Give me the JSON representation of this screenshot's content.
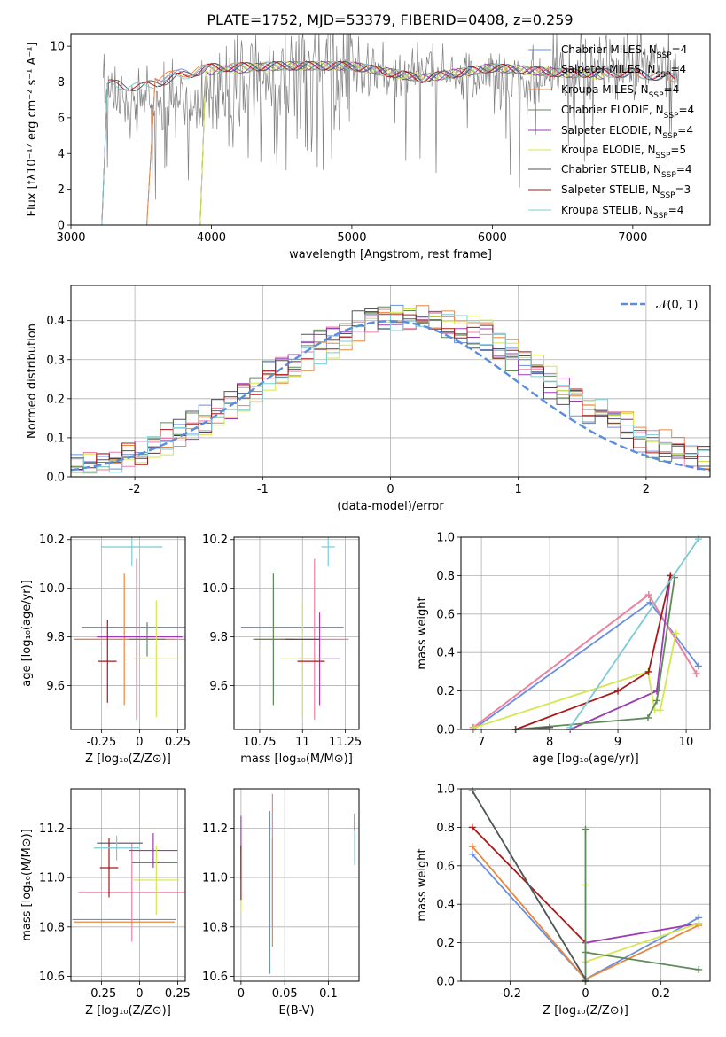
{
  "figure": {
    "title": "PLATE=1752, MJD=53379, FIBERID=0408, z=0.259"
  },
  "colors": {
    "Chabrier MILES": "#6a8fe0",
    "Salpeter MILES": "#ee7fa8",
    "Kroupa MILES": "#e8883e",
    "Chabrier ELODIE": "#5f8a5a",
    "Salpeter ELODIE": "#9b3cb4",
    "Kroupa ELODIE": "#d4e64e",
    "Chabrier STELIB": "#555555",
    "Salpeter STELIB": "#a81818",
    "Kroupa STELIB": "#7ccbd6",
    "data": "#808080",
    "normal": "#5b8dde"
  },
  "chart_data": [
    {
      "panel": "spectrum",
      "type": "line",
      "xlabel": "wavelength [Angstrom, rest frame]",
      "ylabel": "Flux [fλ10⁻¹⁷ erg cm⁻² s⁻¹ A⁻¹]",
      "xlim": [
        3000,
        7550
      ],
      "ylim": [
        0,
        10.7
      ],
      "xticks": [
        3000,
        4000,
        5000,
        6000,
        7000
      ],
      "yticks": [
        0,
        2,
        4,
        6,
        8,
        10
      ],
      "grid": false,
      "legend": "top-right",
      "series": [
        {
          "name": "Chabrier MILES, NSSP=4",
          "x": [
            3540,
            3600,
            4000,
            4500,
            5000,
            5500,
            6000,
            6500,
            7000,
            7300
          ],
          "y": [
            0,
            8.2,
            8.8,
            8.9,
            8.9,
            8.2,
            8.8,
            8.5,
            8.5,
            8.2
          ]
        },
        {
          "name": "Salpeter MILES, NSSP=4",
          "x": [
            3540,
            3600,
            4000,
            4500,
            5000,
            5500,
            6000,
            6500,
            7000,
            7300
          ],
          "y": [
            0,
            8.2,
            8.8,
            8.9,
            8.9,
            8.2,
            8.8,
            8.5,
            8.5,
            8.2
          ]
        },
        {
          "name": "Kroupa MILES, NSSP=4",
          "x": [
            3540,
            3600,
            4000,
            4500,
            5000,
            5500,
            6000,
            6500,
            7000,
            7300
          ],
          "y": [
            0,
            8.2,
            8.8,
            8.9,
            8.9,
            8.2,
            8.8,
            8.5,
            8.5,
            8.2
          ]
        },
        {
          "name": "Chabrier ELODIE, NSSP=4",
          "x": [
            3920,
            3960,
            4500,
            5000,
            5500,
            6000,
            6500,
            6790
          ],
          "y": [
            0,
            8.6,
            8.9,
            8.9,
            8.2,
            8.8,
            8.5,
            8.4
          ]
        },
        {
          "name": "Salpeter ELODIE, NSSP=4",
          "x": [
            3920,
            3960,
            4500,
            5000,
            5500,
            6000,
            6500,
            6790
          ],
          "y": [
            0,
            8.6,
            8.9,
            8.9,
            8.2,
            8.8,
            8.5,
            8.4
          ]
        },
        {
          "name": "Kroupa ELODIE, NSSP=5",
          "x": [
            3920,
            3960,
            4500,
            5000,
            5500,
            6000,
            6500,
            6790
          ],
          "y": [
            0,
            8.6,
            8.9,
            8.9,
            8.2,
            8.8,
            8.5,
            8.4
          ]
        },
        {
          "name": "Chabrier STELIB, NSSP=4",
          "x": [
            3220,
            3260,
            3500,
            4000,
            4500,
            5000,
            5500,
            6000,
            6500,
            7000,
            7300
          ],
          "y": [
            0,
            7.9,
            7.7,
            8.8,
            8.9,
            8.9,
            8.2,
            8.8,
            8.5,
            8.5,
            8.2
          ]
        },
        {
          "name": "Salpeter STELIB, NSSP=3",
          "x": [
            3220,
            3260,
            3500,
            4000,
            4500,
            5000,
            5500,
            6000,
            6500,
            7000,
            7300
          ],
          "y": [
            0,
            7.9,
            7.7,
            8.8,
            8.9,
            8.9,
            8.2,
            8.8,
            8.5,
            8.5,
            8.2
          ]
        },
        {
          "name": "Kroupa STELIB, NSSP=4",
          "x": [
            3220,
            3260,
            3500,
            4000,
            4500,
            5000,
            5500,
            6000,
            6500,
            7000,
            7300
          ],
          "y": [
            0,
            7.9,
            7.7,
            8.8,
            8.9,
            8.9,
            8.2,
            8.8,
            8.5,
            8.5,
            8.2
          ]
        }
      ]
    },
    {
      "panel": "residuals",
      "type": "line",
      "xlabel": "(data-model)/error",
      "ylabel": "Normed distribution",
      "xlim": [
        -2.5,
        2.5
      ],
      "ylim": [
        0,
        0.49
      ],
      "xticks": [
        -2,
        -1,
        0,
        1,
        2
      ],
      "yticks": [
        0.0,
        0.1,
        0.2,
        0.3,
        0.4
      ],
      "grid": true,
      "legend": "top-right",
      "normal_label": "𝒩(0, 1)",
      "bin_width": 0.1
    },
    {
      "panel": "age_vs_Z",
      "type": "scatter",
      "xlabel": "Z [log₁₀(Z/Z⊙)]",
      "ylabel": "age  [log₁₀(age/yr)]",
      "xlim": [
        -0.45,
        0.3
      ],
      "ylim": [
        9.42,
        10.21
      ],
      "xticks": [
        -0.25,
        0.0,
        0.25
      ],
      "yticks": [
        9.6,
        9.8,
        10.0,
        10.2
      ],
      "grid": true,
      "points": [
        {
          "model": "Chabrier MILES",
          "x": 0.0,
          "y": 9.84,
          "xerr": 0.38,
          "yerr": 0.0
        },
        {
          "model": "Salpeter MILES",
          "x": -0.02,
          "y": 9.79,
          "xerr": 0.4,
          "yerr": 0.33
        },
        {
          "model": "Kroupa MILES",
          "x": -0.1,
          "y": 9.79,
          "xerr": 0.33,
          "yerr": 0.27
        },
        {
          "model": "Chabrier ELODIE",
          "x": 0.05,
          "y": 9.79,
          "xerr": 0.12,
          "yerr": 0.07
        },
        {
          "model": "Salpeter ELODIE",
          "x": 0.0,
          "y": 9.8,
          "xerr": 0.28,
          "yerr": 0.0
        },
        {
          "model": "Kroupa ELODIE",
          "x": 0.11,
          "y": 9.71,
          "xerr": 0.15,
          "yerr": 0.24
        },
        {
          "model": "Chabrier STELIB",
          "x": -0.28,
          "y": 9.79,
          "xerr": 0.0,
          "yerr": 0.0
        },
        {
          "model": "Salpeter STELIB",
          "x": -0.21,
          "y": 9.7,
          "xerr": 0.06,
          "yerr": 0.17
        },
        {
          "model": "Kroupa STELIB",
          "x": -0.05,
          "y": 10.17,
          "xerr": 0.2,
          "yerr": 0.08
        }
      ]
    },
    {
      "panel": "age_vs_mass",
      "type": "scatter",
      "xlabel": "mass [log₁₀(M/M⊙)]",
      "ylabel": "",
      "xlim": [
        10.6,
        11.33
      ],
      "ylim": [
        9.42,
        10.21
      ],
      "xticks": [
        10.75,
        11.0,
        11.25
      ],
      "yticks": [
        9.6,
        9.8,
        10.0,
        10.2
      ],
      "grid": true,
      "points": [
        {
          "model": "Chabrier MILES",
          "x": 10.94,
          "y": 9.84,
          "xerr": 0.3,
          "yerr": 0.0
        },
        {
          "model": "Salpeter MILES",
          "x": 11.07,
          "y": 9.79,
          "xerr": 0.2,
          "yerr": 0.33
        },
        {
          "model": "Kroupa MILES",
          "x": 10.83,
          "y": 9.79,
          "xerr": 0.12,
          "yerr": 0.27
        },
        {
          "model": "Chabrier ELODIE",
          "x": 10.83,
          "y": 9.79,
          "xerr": 0.11,
          "yerr": 0.27
        },
        {
          "model": "Salpeter ELODIE",
          "x": 11.1,
          "y": 9.71,
          "xerr": 0.12,
          "yerr": 0.19
        },
        {
          "model": "Kroupa ELODIE",
          "x": 11.0,
          "y": 9.71,
          "xerr": 0.13,
          "yerr": 0.24
        },
        {
          "model": "Chabrier STELIB",
          "x": 11.0,
          "y": 9.79,
          "xerr": 0.1,
          "yerr": 0.0
        },
        {
          "model": "Salpeter STELIB",
          "x": 11.05,
          "y": 9.7,
          "xerr": 0.08,
          "yerr": 0.0
        },
        {
          "model": "Kroupa STELIB",
          "x": 11.15,
          "y": 10.17,
          "xerr": 0.04,
          "yerr": 0.08
        }
      ]
    },
    {
      "panel": "mass_weight_vs_age",
      "type": "line",
      "xlabel": "age  [log₁₀(age/yr)]",
      "ylabel": "mass weight",
      "xlim": [
        6.7,
        10.35
      ],
      "ylim": [
        0,
        1.0
      ],
      "xticks": [
        7,
        8,
        9,
        10
      ],
      "yticks": [
        0.0,
        0.2,
        0.4,
        0.6,
        0.8,
        1.0
      ],
      "grid": true,
      "series": [
        {
          "model": "Chabrier MILES",
          "x": [
            6.88,
            9.47,
            10.18
          ],
          "y": [
            0.0,
            0.66,
            0.33
          ]
        },
        {
          "model": "Kroupa MILES",
          "x": [
            6.88,
            9.45,
            10.15
          ],
          "y": [
            0.01,
            0.7,
            0.29
          ]
        },
        {
          "model": "Salpeter MILES",
          "x": [
            6.88,
            9.45,
            10.15
          ],
          "y": [
            0.01,
            0.7,
            0.29
          ]
        },
        {
          "model": "Salpeter ELODIE",
          "x": [
            8.3,
            9.57,
            9.77
          ],
          "y": [
            0.0,
            0.2,
            0.8
          ]
        },
        {
          "model": "Kroupa ELODIE",
          "x": [
            6.9,
            9.44,
            9.54,
            9.62,
            9.85
          ],
          "y": [
            0.01,
            0.3,
            0.1,
            0.1,
            0.5
          ]
        },
        {
          "model": "Chabrier ELODIE",
          "x": [
            7.5,
            9.44,
            9.57,
            9.83
          ],
          "y": [
            0.0,
            0.06,
            0.15,
            0.79
          ]
        },
        {
          "model": "Salpeter STELIB",
          "x": [
            7.5,
            9.0,
            9.45,
            9.77
          ],
          "y": [
            0.0,
            0.2,
            0.3,
            0.8
          ]
        },
        {
          "model": "Kroupa STELIB",
          "x": [
            8.3,
            10.18
          ],
          "y": [
            0.01,
            0.99
          ]
        },
        {
          "model": "Chabrier STELIB",
          "x": [
            7.5,
            8.0
          ],
          "y": [
            0.0,
            0.01
          ]
        }
      ]
    },
    {
      "panel": "mass_vs_Z",
      "type": "scatter",
      "xlabel": "Z [log₁₀(Z/Z⊙)]",
      "ylabel": "mass [log₁₀(M/M⊙)]",
      "xlim": [
        -0.45,
        0.3
      ],
      "ylim": [
        10.58,
        11.36
      ],
      "xticks": [
        -0.25,
        0.0,
        0.25
      ],
      "yticks": [
        10.6,
        10.8,
        11.0,
        11.2
      ],
      "grid": true,
      "points": [
        {
          "model": "Chabrier MILES",
          "x": -0.1,
          "y": 10.83,
          "xerr": 0.34,
          "yerr": 0.0
        },
        {
          "model": "Salpeter MILES",
          "x": -0.05,
          "y": 10.94,
          "xerr": 0.35,
          "yerr": 0.2
        },
        {
          "model": "Kroupa MILES",
          "x": -0.1,
          "y": 10.82,
          "xerr": 0.33,
          "yerr": 0.0
        },
        {
          "model": "Chabrier ELODIE",
          "x": 0.1,
          "y": 11.06,
          "xerr": 0.15,
          "yerr": 0.0
        },
        {
          "model": "Salpeter ELODIE",
          "x": 0.09,
          "y": 11.11,
          "xerr": 0.16,
          "yerr": 0.07
        },
        {
          "model": "Kroupa ELODIE",
          "x": 0.11,
          "y": 10.99,
          "xerr": 0.15,
          "yerr": 0.14
        },
        {
          "model": "Chabrier STELIB",
          "x": -0.13,
          "y": 11.14,
          "xerr": 0.15,
          "yerr": 0.0
        },
        {
          "model": "Salpeter STELIB",
          "x": -0.2,
          "y": 11.04,
          "xerr": 0.06,
          "yerr": 0.12
        },
        {
          "model": "Kroupa STELIB",
          "x": -0.15,
          "y": 11.12,
          "xerr": 0.15,
          "yerr": 0.05
        }
      ]
    },
    {
      "panel": "mass_vs_EBV",
      "type": "scatter",
      "xlabel": "E(B-V)",
      "ylabel": "",
      "xlim": [
        -0.008,
        0.135
      ],
      "ylim": [
        10.58,
        11.36
      ],
      "xticks": [
        0.0,
        0.05,
        0.1
      ],
      "yticks": [
        10.6,
        10.8,
        11.0,
        11.2
      ],
      "grid": true,
      "points": [
        {
          "model": "Chabrier MILES",
          "x": 0.033,
          "y": 10.94,
          "xerr": 0,
          "yerr": 0.33
        },
        {
          "model": "Salpeter MILES",
          "x": 0.036,
          "y": 11.07,
          "xerr": 0,
          "yerr": 0.27
        },
        {
          "model": "Kroupa MILES",
          "x": 0.036,
          "y": 10.94,
          "xerr": 0,
          "yerr": 0.22
        },
        {
          "model": "Chabrier ELODIE",
          "x": 0.0,
          "y": 11.06,
          "xerr": 0,
          "yerr": 0.07
        },
        {
          "model": "Salpeter ELODIE",
          "x": 0.0,
          "y": 11.12,
          "xerr": 0,
          "yerr": 0.13
        },
        {
          "model": "Kroupa ELODIE",
          "x": 0.0,
          "y": 10.98,
          "xerr": 0,
          "yerr": 0.12
        },
        {
          "model": "Chabrier STELIB",
          "x": 0.13,
          "y": 11.16,
          "xerr": 0,
          "yerr": 0.1
        },
        {
          "model": "Salpeter STELIB",
          "x": 0.0,
          "y": 11.02,
          "xerr": 0,
          "yerr": 0.11
        },
        {
          "model": "Kroupa STELIB",
          "x": 0.13,
          "y": 11.12,
          "xerr": 0,
          "yerr": 0.07
        }
      ]
    },
    {
      "panel": "mass_weight_vs_Z",
      "type": "line",
      "xlabel": "Z [log₁₀(Z/Z⊙)]",
      "ylabel": "mass weight",
      "xlim": [
        -0.33,
        0.33
      ],
      "ylim": [
        0,
        1.0
      ],
      "xticks": [
        -0.2,
        0.0,
        0.2
      ],
      "yticks": [
        0.0,
        0.2,
        0.4,
        0.6,
        0.8,
        1.0
      ],
      "grid": true,
      "series": [
        {
          "model": "Chabrier MILES",
          "x": [
            -0.3,
            0.0,
            0.3
          ],
          "y": [
            0.66,
            0.01,
            0.33
          ]
        },
        {
          "model": "Kroupa MILES",
          "x": [
            -0.3,
            0.0,
            0.3
          ],
          "y": [
            0.7,
            0.01,
            0.29
          ]
        },
        {
          "model": "Salpeter STELIB",
          "x": [
            -0.3,
            0.0,
            0.0
          ],
          "y": [
            0.8,
            0.2,
            0.0
          ]
        },
        {
          "model": "Salpeter ELODIE",
          "x": [
            0.0,
            0.3
          ],
          "y": [
            0.2,
            0.3
          ]
        },
        {
          "model": "Kroupa ELODIE",
          "x": [
            0.0,
            0.0,
            0.0,
            0.3
          ],
          "y": [
            0.0,
            0.5,
            0.1,
            0.3
          ]
        },
        {
          "model": "Chabrier ELODIE",
          "x": [
            0.0,
            0.0,
            0.0,
            0.3
          ],
          "y": [
            0.0,
            0.79,
            0.15,
            0.06
          ]
        },
        {
          "model": "Kroupa STELIB",
          "x": [
            -0.3,
            0.0
          ],
          "y": [
            0.99,
            0.01
          ]
        },
        {
          "model": "Chabrier STELIB",
          "x": [
            -0.3,
            0.0
          ],
          "y": [
            0.99,
            0.01
          ]
        }
      ]
    }
  ]
}
